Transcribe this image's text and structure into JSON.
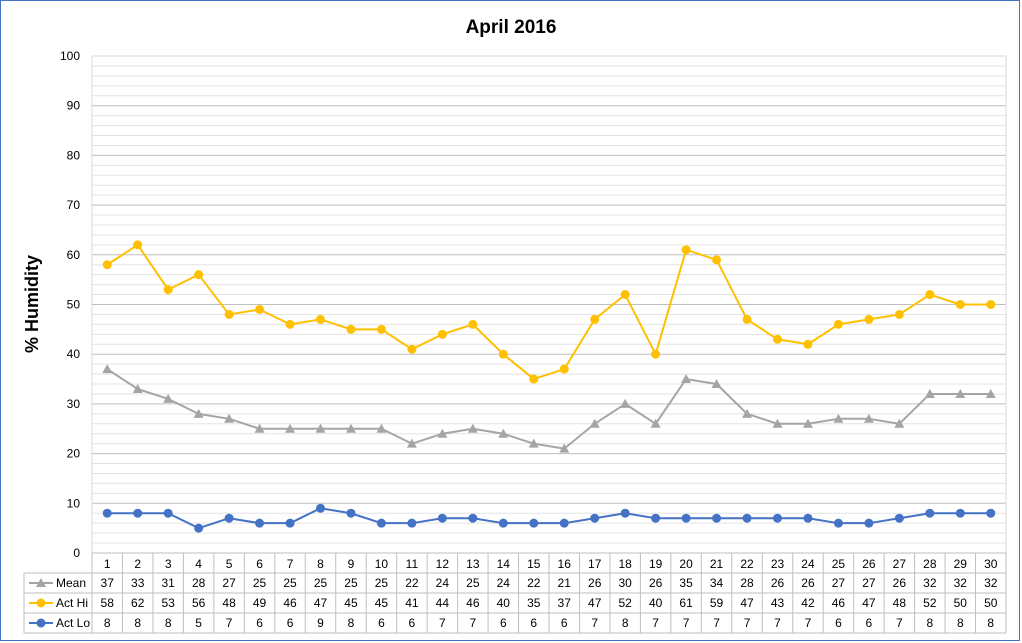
{
  "chart_data": {
    "type": "line",
    "title": "April 2016",
    "ylabel": "% Humidity",
    "xlabel": "",
    "ylim": [
      0,
      100
    ],
    "y_ticks": [
      0,
      10,
      20,
      30,
      40,
      50,
      60,
      70,
      80,
      90,
      100
    ],
    "grid": true,
    "legend": "data-table",
    "categories": [
      "1",
      "2",
      "3",
      "4",
      "5",
      "6",
      "7",
      "8",
      "9",
      "10",
      "11",
      "12",
      "13",
      "14",
      "15",
      "16",
      "17",
      "18",
      "19",
      "20",
      "21",
      "22",
      "23",
      "24",
      "25",
      "26",
      "27",
      "28",
      "29",
      "30"
    ],
    "series": [
      {
        "name": "Mean",
        "color": "#a5a5a5",
        "marker": "triangle",
        "values": [
          37,
          33,
          31,
          28,
          27,
          25,
          25,
          25,
          25,
          25,
          22,
          24,
          25,
          24,
          22,
          21,
          26,
          30,
          26,
          35,
          34,
          28,
          26,
          26,
          27,
          27,
          26,
          32,
          32,
          32
        ]
      },
      {
        "name": "Act Hi",
        "color": "#ffc000",
        "marker": "circle",
        "values": [
          58,
          62,
          53,
          56,
          48,
          49,
          46,
          47,
          45,
          45,
          41,
          44,
          46,
          40,
          35,
          37,
          47,
          52,
          40,
          61,
          59,
          47,
          43,
          42,
          46,
          47,
          48,
          52,
          50,
          50
        ]
      },
      {
        "name": "Act Lo",
        "color": "#4472c4",
        "marker": "circle",
        "values": [
          8,
          8,
          8,
          5,
          7,
          6,
          6,
          9,
          8,
          6,
          6,
          7,
          7,
          6,
          6,
          6,
          7,
          8,
          7,
          7,
          7,
          7,
          7,
          7,
          6,
          6,
          7,
          8,
          8,
          8
        ]
      }
    ]
  }
}
